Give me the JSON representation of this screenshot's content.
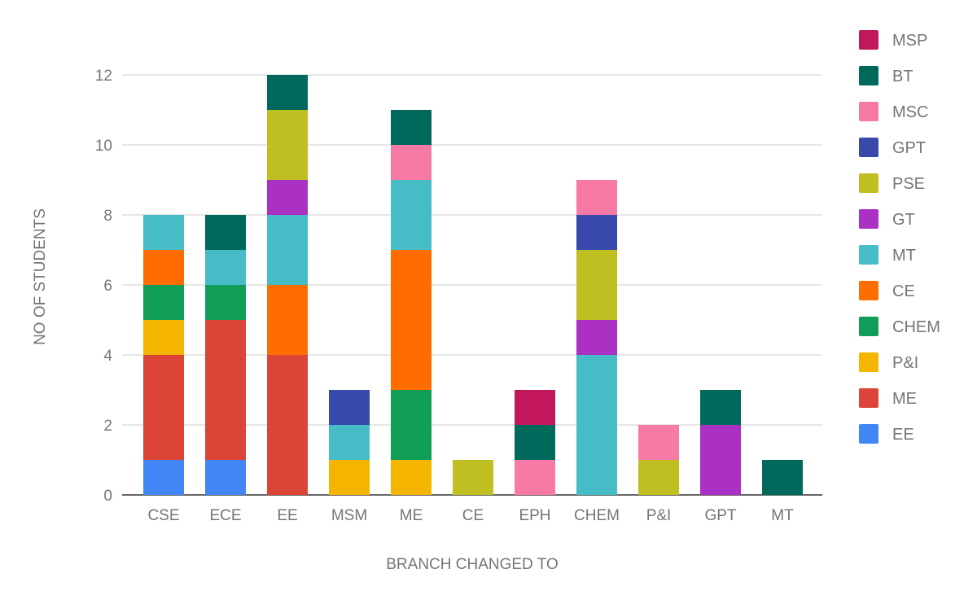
{
  "chart_data": {
    "type": "bar",
    "stacked": true,
    "xlabel": "BRANCH CHANGED TO",
    "ylabel": "NO OF STUDENTS",
    "ylim": [
      0,
      12
    ],
    "yticks": [
      0,
      2,
      4,
      6,
      8,
      10,
      12
    ],
    "grid": true,
    "legend_position": "right",
    "categories": [
      "CSE",
      "ECE",
      "EE",
      "MSM",
      "ME",
      "CE",
      "EPH",
      "CHEM",
      "P&I",
      "GPT",
      "MT"
    ],
    "series": [
      {
        "name": "EE",
        "color": "#4285f4",
        "values": [
          1,
          1,
          0,
          0,
          0,
          0,
          0,
          0,
          0,
          0,
          0
        ]
      },
      {
        "name": "ME",
        "color": "#db4437",
        "values": [
          3,
          4,
          4,
          0,
          0,
          0,
          0,
          0,
          0,
          0,
          0
        ]
      },
      {
        "name": "P&I",
        "color": "#f4b400",
        "values": [
          1,
          0,
          0,
          1,
          1,
          0,
          0,
          0,
          0,
          0,
          0
        ]
      },
      {
        "name": "CHEM",
        "color": "#0f9d58",
        "values": [
          1,
          1,
          0,
          0,
          2,
          0,
          0,
          0,
          0,
          0,
          0
        ]
      },
      {
        "name": "CE",
        "color": "#ff6d00",
        "values": [
          1,
          0,
          2,
          0,
          4,
          0,
          0,
          0,
          0,
          0,
          0
        ]
      },
      {
        "name": "MT",
        "color": "#46bdc6",
        "values": [
          1,
          1,
          2,
          1,
          2,
          0,
          0,
          4,
          0,
          0,
          0
        ]
      },
      {
        "name": "GT",
        "color": "#ab30c4",
        "values": [
          0,
          0,
          1,
          0,
          0,
          0,
          0,
          1,
          0,
          2,
          0
        ]
      },
      {
        "name": "PSE",
        "color": "#c0bf22",
        "values": [
          0,
          0,
          2,
          0,
          0,
          1,
          0,
          2,
          1,
          0,
          0
        ]
      },
      {
        "name": "GPT",
        "color": "#3949ab",
        "values": [
          0,
          0,
          0,
          1,
          0,
          0,
          0,
          1,
          0,
          0,
          0
        ]
      },
      {
        "name": "MSC",
        "color": "#f77aa6",
        "values": [
          0,
          0,
          0,
          0,
          1,
          0,
          1,
          1,
          1,
          0,
          0
        ]
      },
      {
        "name": "BT",
        "color": "#00695c",
        "values": [
          0,
          1,
          1,
          0,
          1,
          0,
          1,
          0,
          0,
          1,
          1
        ]
      },
      {
        "name": "MSP",
        "color": "#c2185b",
        "values": [
          0,
          0,
          0,
          0,
          0,
          0,
          1,
          0,
          0,
          0,
          0
        ]
      }
    ]
  }
}
